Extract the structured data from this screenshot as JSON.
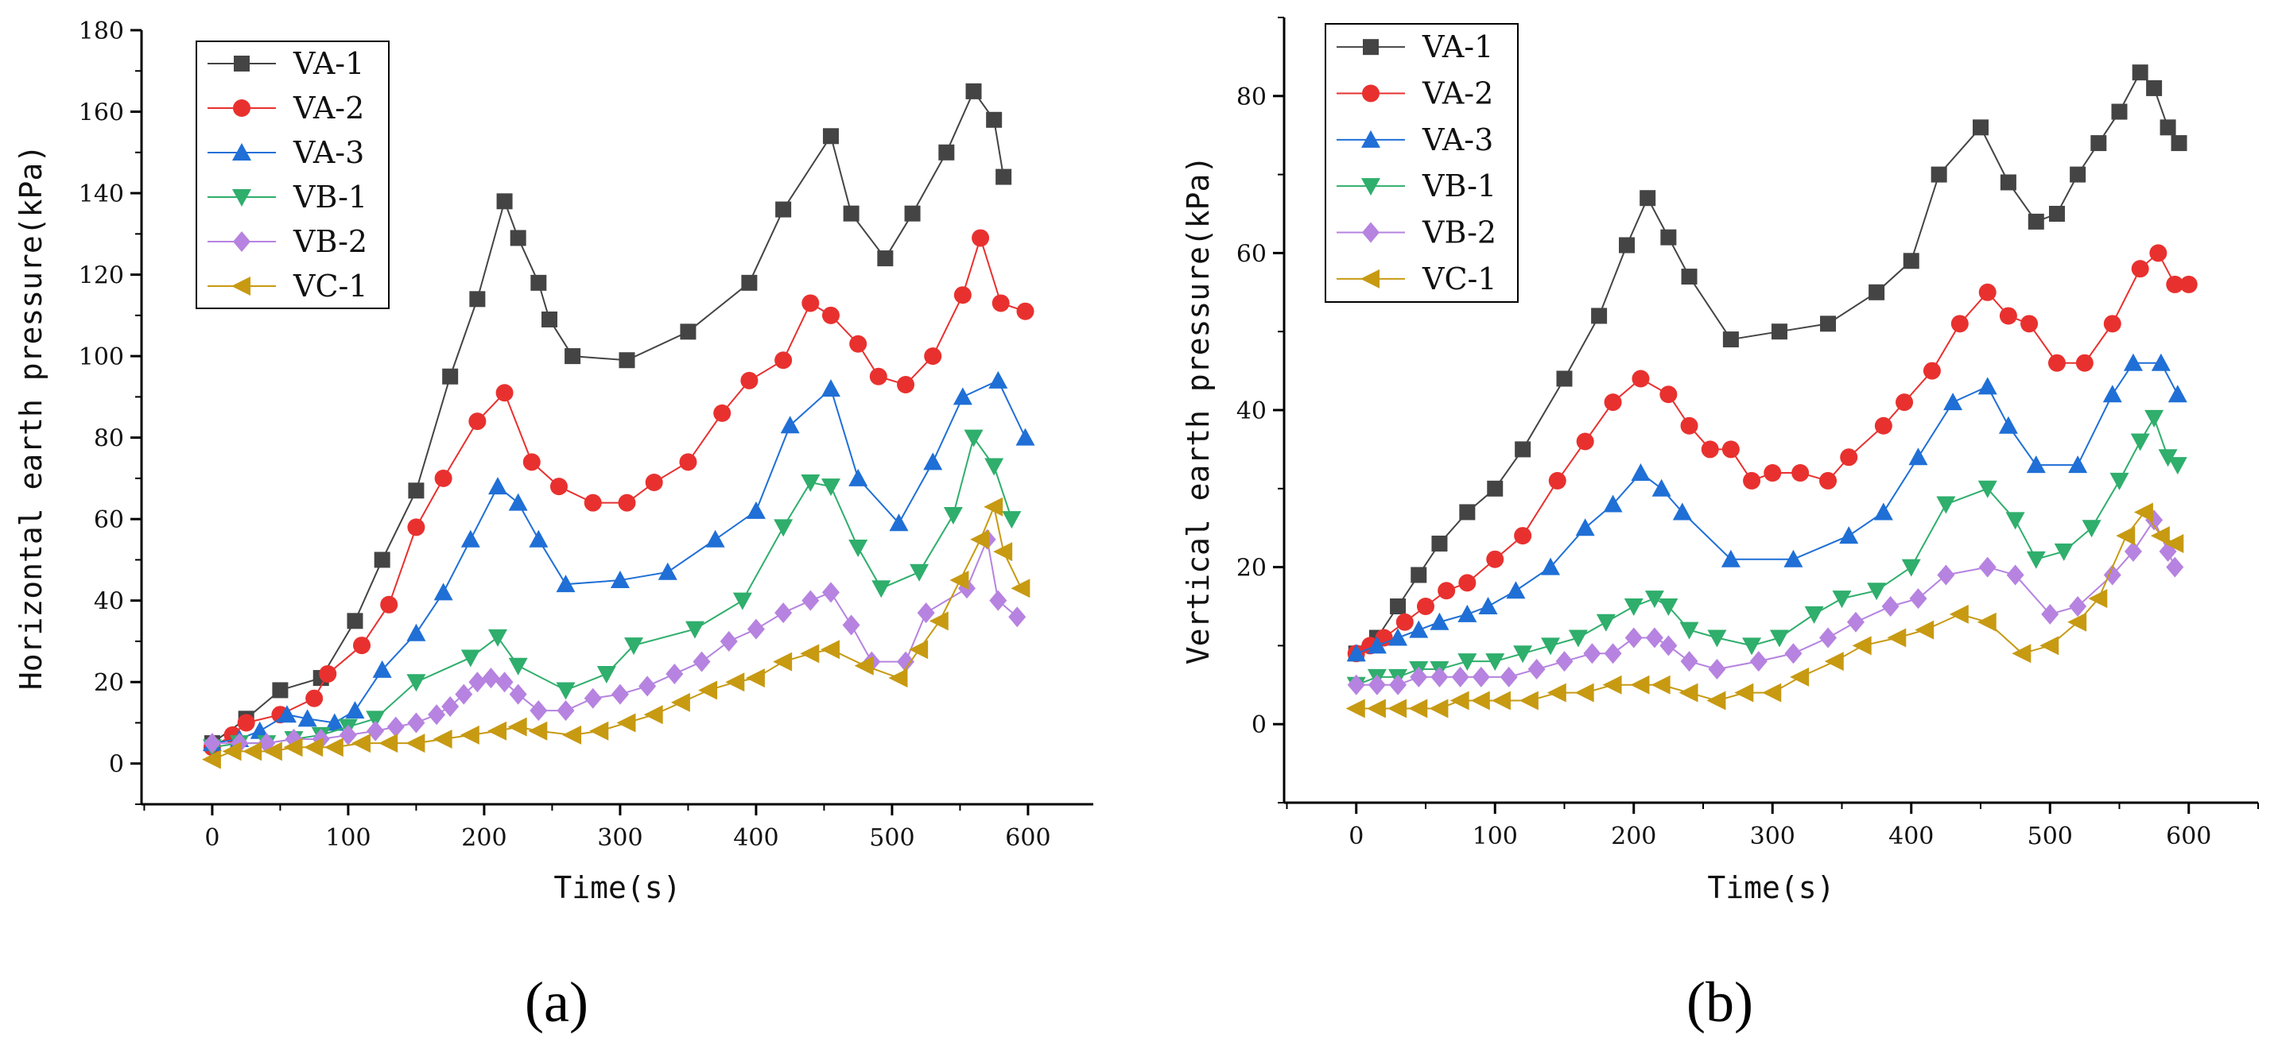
{
  "chart_data": [
    {
      "type": "line",
      "panel_label": "(a)",
      "xlabel": "Time(s)",
      "ylabel": "Horizontal earth pressure(kPa)",
      "xlim": [
        -52,
        648
      ],
      "ylim": [
        -10,
        180
      ],
      "xticks": [
        0,
        100,
        200,
        300,
        400,
        500,
        600
      ],
      "yticks": [
        0,
        20,
        40,
        60,
        80,
        100,
        120,
        140,
        160,
        180
      ],
      "series": [
        {
          "name": "VA-1",
          "color": "#444444",
          "marker": "square",
          "x": [
            0,
            25,
            50,
            80,
            105,
            125,
            150,
            175,
            195,
            215,
            225,
            240,
            248,
            265,
            305,
            350,
            395,
            420,
            455,
            470,
            495,
            515,
            540,
            560,
            575,
            582
          ],
          "y": [
            5,
            11,
            18,
            21,
            35,
            50,
            67,
            95,
            114,
            138,
            129,
            118,
            109,
            100,
            99,
            106,
            118,
            136,
            154,
            135,
            124,
            135,
            150,
            165,
            158,
            144
          ]
        },
        {
          "name": "VA-2",
          "color": "#e8312f",
          "marker": "circle",
          "x": [
            0,
            15,
            25,
            50,
            75,
            85,
            110,
            130,
            150,
            170,
            195,
            215,
            235,
            255,
            280,
            305,
            325,
            350,
            375,
            395,
            420,
            440,
            455,
            475,
            490,
            510,
            530,
            552,
            565,
            580,
            598
          ],
          "y": [
            4,
            7,
            10,
            12,
            16,
            22,
            29,
            39,
            58,
            70,
            84,
            91,
            74,
            68,
            64,
            64,
            69,
            74,
            86,
            94,
            99,
            113,
            110,
            103,
            95,
            93,
            100,
            115,
            129,
            113,
            111
          ]
        },
        {
          "name": "VA-3",
          "color": "#1f6fd6",
          "marker": "triangle-up",
          "x": [
            0,
            20,
            35,
            55,
            70,
            90,
            105,
            125,
            150,
            170,
            190,
            210,
            225,
            240,
            260,
            300,
            335,
            370,
            400,
            425,
            455,
            475,
            505,
            530,
            552,
            578,
            598
          ],
          "y": [
            5,
            6,
            8,
            12,
            11,
            10,
            13,
            23,
            32,
            42,
            55,
            68,
            64,
            55,
            44,
            45,
            47,
            55,
            62,
            83,
            92,
            70,
            59,
            74,
            90,
            94,
            80
          ]
        },
        {
          "name": "VB-1",
          "color": "#2fae6c",
          "marker": "triangle-down",
          "x": [
            0,
            20,
            40,
            60,
            80,
            100,
            120,
            150,
            190,
            210,
            225,
            260,
            290,
            310,
            355,
            390,
            420,
            440,
            455,
            475,
            492,
            520,
            545,
            560,
            575,
            588
          ],
          "y": [
            4,
            5,
            5,
            6,
            7,
            9,
            11,
            20,
            26,
            31,
            24,
            18,
            22,
            29,
            33,
            40,
            58,
            69,
            68,
            53,
            43,
            47,
            61,
            80,
            73,
            60
          ]
        },
        {
          "name": "VB-2",
          "color": "#b683e0",
          "marker": "diamond",
          "x": [
            0,
            20,
            40,
            60,
            80,
            100,
            120,
            135,
            150,
            165,
            175,
            185,
            195,
            205,
            215,
            225,
            240,
            260,
            280,
            300,
            320,
            340,
            360,
            380,
            400,
            420,
            440,
            455,
            470,
            485,
            510,
            525,
            555,
            570,
            578,
            592
          ],
          "y": [
            5,
            5,
            5,
            6,
            6,
            7,
            8,
            9,
            10,
            12,
            14,
            17,
            20,
            21,
            20,
            17,
            13,
            13,
            16,
            17,
            19,
            22,
            25,
            30,
            33,
            37,
            40,
            42,
            34,
            25,
            25,
            37,
            43,
            55,
            40,
            36
          ]
        },
        {
          "name": "VC-1",
          "color": "#c79a12",
          "marker": "triangle-left",
          "x": [
            0,
            15,
            30,
            45,
            60,
            75,
            90,
            110,
            130,
            150,
            170,
            190,
            210,
            225,
            240,
            265,
            285,
            305,
            325,
            345,
            365,
            385,
            400,
            420,
            440,
            455,
            480,
            505,
            520,
            535,
            550,
            565,
            575,
            582,
            595
          ],
          "y": [
            1,
            3,
            3,
            3,
            4,
            4,
            4,
            5,
            5,
            5,
            6,
            7,
            8,
            9,
            8,
            7,
            8,
            10,
            12,
            15,
            18,
            20,
            21,
            25,
            27,
            28,
            24,
            21,
            28,
            35,
            45,
            55,
            63,
            52,
            43
          ]
        }
      ]
    },
    {
      "type": "line",
      "panel_label": "(b)",
      "xlabel": "Time(s)",
      "ylabel": "Vertical earth pressure(kPa)",
      "xlim": [
        -52,
        650
      ],
      "ylim": [
        -10,
        90
      ],
      "xticks": [
        0,
        100,
        200,
        300,
        400,
        500,
        600
      ],
      "yticks": [
        0,
        20,
        40,
        60,
        80
      ],
      "series": [
        {
          "name": "VA-1",
          "color": "#444444",
          "marker": "square",
          "x": [
            0,
            15,
            30,
            45,
            60,
            80,
            100,
            120,
            150,
            175,
            195,
            210,
            225,
            240,
            270,
            305,
            340,
            375,
            400,
            420,
            450,
            470,
            490,
            505,
            520,
            535,
            550,
            565,
            575,
            585,
            593
          ],
          "y": [
            9,
            11,
            15,
            19,
            23,
            27,
            30,
            35,
            44,
            52,
            61,
            67,
            62,
            57,
            49,
            50,
            51,
            55,
            59,
            70,
            76,
            69,
            64,
            65,
            70,
            74,
            78,
            83,
            81,
            76,
            74
          ]
        },
        {
          "name": "VA-2",
          "color": "#e8312f",
          "marker": "circle",
          "x": [
            0,
            10,
            20,
            35,
            50,
            65,
            80,
            100,
            120,
            145,
            165,
            185,
            205,
            225,
            240,
            255,
            270,
            285,
            300,
            320,
            340,
            355,
            380,
            395,
            415,
            435,
            455,
            470,
            485,
            505,
            525,
            545,
            565,
            578,
            590,
            600
          ],
          "y": [
            9,
            10,
            11,
            13,
            15,
            17,
            18,
            21,
            24,
            31,
            36,
            41,
            44,
            42,
            38,
            35,
            35,
            31,
            32,
            32,
            31,
            34,
            38,
            41,
            45,
            51,
            55,
            52,
            51,
            46,
            46,
            51,
            58,
            60,
            56,
            56
          ]
        },
        {
          "name": "VA-3",
          "color": "#1f6fd6",
          "marker": "triangle-up",
          "x": [
            0,
            15,
            30,
            45,
            60,
            80,
            95,
            115,
            140,
            165,
            185,
            205,
            220,
            235,
            270,
            315,
            355,
            380,
            405,
            430,
            455,
            470,
            490,
            520,
            545,
            560,
            580,
            592
          ],
          "y": [
            9,
            10,
            11,
            12,
            13,
            14,
            15,
            17,
            20,
            25,
            28,
            32,
            30,
            27,
            21,
            21,
            24,
            27,
            34,
            41,
            43,
            38,
            33,
            33,
            42,
            46,
            46,
            42
          ]
        },
        {
          "name": "VB-1",
          "color": "#2fae6c",
          "marker": "triangle-down",
          "x": [
            0,
            15,
            30,
            45,
            60,
            80,
            100,
            120,
            140,
            160,
            180,
            200,
            215,
            225,
            240,
            260,
            285,
            305,
            330,
            350,
            375,
            400,
            425,
            455,
            475,
            490,
            510,
            530,
            550,
            565,
            575,
            585,
            592
          ],
          "y": [
            5,
            6,
            6,
            7,
            7,
            8,
            8,
            9,
            10,
            11,
            13,
            15,
            16,
            15,
            12,
            11,
            10,
            11,
            14,
            16,
            17,
            20,
            28,
            30,
            26,
            21,
            22,
            25,
            31,
            36,
            39,
            34,
            33
          ]
        },
        {
          "name": "VB-2",
          "color": "#b683e0",
          "marker": "diamond",
          "x": [
            0,
            15,
            30,
            45,
            60,
            75,
            90,
            110,
            130,
            150,
            170,
            185,
            200,
            215,
            225,
            240,
            260,
            290,
            315,
            340,
            360,
            385,
            405,
            425,
            455,
            475,
            500,
            520,
            545,
            560,
            575,
            585,
            590
          ],
          "y": [
            5,
            5,
            5,
            6,
            6,
            6,
            6,
            6,
            7,
            8,
            9,
            9,
            11,
            11,
            10,
            8,
            7,
            8,
            9,
            11,
            13,
            15,
            16,
            19,
            20,
            19,
            14,
            15,
            19,
            22,
            26,
            22,
            20
          ]
        },
        {
          "name": "VC-1",
          "color": "#c79a12",
          "marker": "triangle-left",
          "x": [
            0,
            15,
            30,
            45,
            60,
            75,
            90,
            105,
            125,
            145,
            165,
            185,
            205,
            220,
            240,
            260,
            280,
            300,
            320,
            345,
            365,
            390,
            410,
            435,
            455,
            480,
            500,
            520,
            535,
            555,
            568,
            580,
            590
          ],
          "y": [
            2,
            2,
            2,
            2,
            2,
            3,
            3,
            3,
            3,
            4,
            4,
            5,
            5,
            5,
            4,
            3,
            4,
            4,
            6,
            8,
            10,
            11,
            12,
            14,
            13,
            9,
            10,
            13,
            16,
            24,
            27,
            24,
            23
          ]
        }
      ]
    }
  ]
}
